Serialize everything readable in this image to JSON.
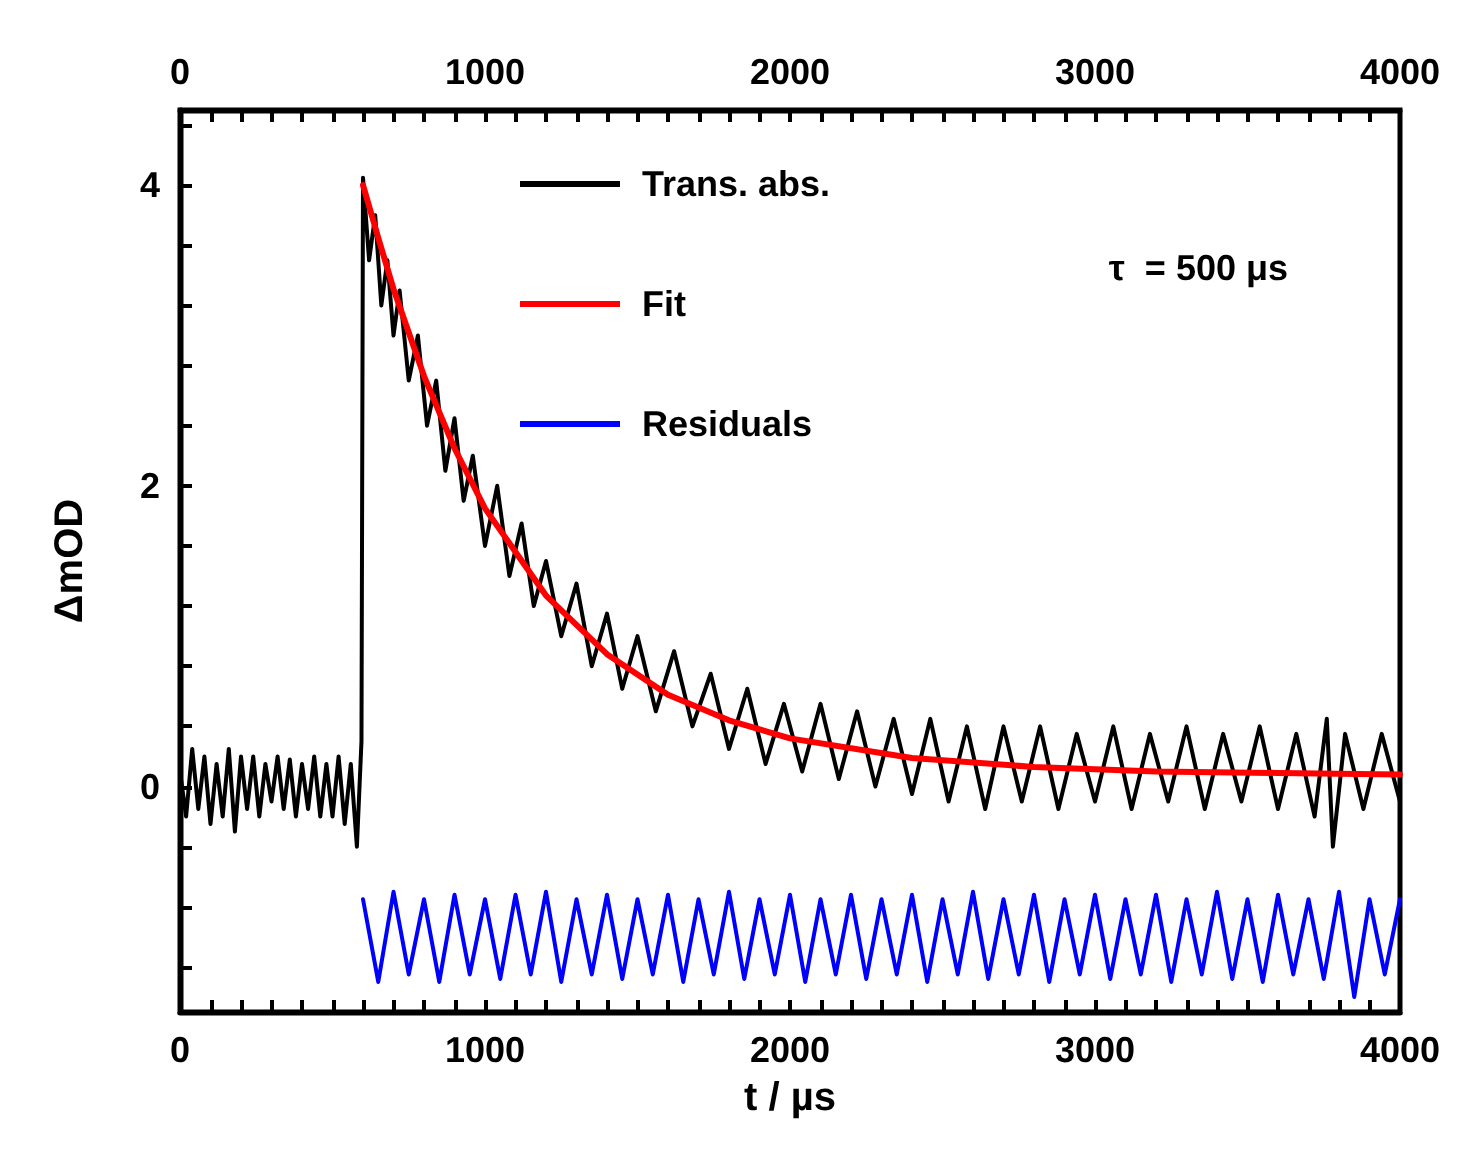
{
  "chart_data": {
    "type": "line",
    "xlabel": "t / µs",
    "ylabel": "ΔmOD",
    "annotations": [
      "τ  = 500 μs"
    ],
    "xlim": [
      0,
      4000
    ],
    "ylim": [
      -1.5,
      4.5
    ],
    "xticks": [
      0,
      {
        "value": 100,
        "label": null
      },
      {
        "value": 200,
        "label": null
      },
      {
        "value": 300,
        "label": null
      },
      {
        "value": 400,
        "label": null
      },
      {
        "value": 500,
        "label": null
      },
      {
        "value": 600,
        "label": null
      },
      {
        "value": 700,
        "label": null
      },
      {
        "value": 800,
        "label": null
      },
      {
        "value": 900,
        "label": null
      },
      1000,
      {
        "value": 1100,
        "label": null
      },
      {
        "value": 1200,
        "label": null
      },
      {
        "value": 1300,
        "label": null
      },
      {
        "value": 1400,
        "label": null
      },
      {
        "value": 1500,
        "label": null
      },
      {
        "value": 1600,
        "label": null
      },
      {
        "value": 1700,
        "label": null
      },
      {
        "value": 1800,
        "label": null
      },
      {
        "value": 1900,
        "label": null
      },
      2000,
      {
        "value": 2100,
        "label": null
      },
      {
        "value": 2200,
        "label": null
      },
      {
        "value": 2300,
        "label": null
      },
      {
        "value": 2400,
        "label": null
      },
      {
        "value": 2500,
        "label": null
      },
      {
        "value": 2600,
        "label": null
      },
      {
        "value": 2700,
        "label": null
      },
      {
        "value": 2800,
        "label": null
      },
      {
        "value": 2900,
        "label": null
      },
      3000,
      {
        "value": 3100,
        "label": null
      },
      {
        "value": 3200,
        "label": null
      },
      {
        "value": 3300,
        "label": null
      },
      {
        "value": 3400,
        "label": null
      },
      {
        "value": 3500,
        "label": null
      },
      {
        "value": 3600,
        "label": null
      },
      {
        "value": 3700,
        "label": null
      },
      {
        "value": 3800,
        "label": null
      },
      {
        "value": 3900,
        "label": null
      },
      4000
    ],
    "x2lim": [
      0,
      4000
    ],
    "x2ticks": [
      0,
      {
        "value": 100,
        "label": null
      },
      {
        "value": 200,
        "label": null
      },
      {
        "value": 300,
        "label": null
      },
      {
        "value": 400,
        "label": null
      },
      {
        "value": 500,
        "label": null
      },
      {
        "value": 600,
        "label": null
      },
      {
        "value": 700,
        "label": null
      },
      {
        "value": 800,
        "label": null
      },
      {
        "value": 900,
        "label": null
      },
      1000,
      {
        "value": 1100,
        "label": null
      },
      {
        "value": 1200,
        "label": null
      },
      {
        "value": 1300,
        "label": null
      },
      {
        "value": 1400,
        "label": null
      },
      {
        "value": 1500,
        "label": null
      },
      {
        "value": 1600,
        "label": null
      },
      {
        "value": 1700,
        "label": null
      },
      {
        "value": 1800,
        "label": null
      },
      {
        "value": 1900,
        "label": null
      },
      2000,
      {
        "value": 2100,
        "label": null
      },
      {
        "value": 2200,
        "label": null
      },
      {
        "value": 2300,
        "label": null
      },
      {
        "value": 2400,
        "label": null
      },
      {
        "value": 2500,
        "label": null
      },
      {
        "value": 2600,
        "label": null
      },
      {
        "value": 2700,
        "label": null
      },
      {
        "value": 2800,
        "label": null
      },
      {
        "value": 2900,
        "label": null
      },
      3000,
      {
        "value": 3100,
        "label": null
      },
      {
        "value": 3200,
        "label": null
      },
      {
        "value": 3300,
        "label": null
      },
      {
        "value": 3400,
        "label": null
      },
      {
        "value": 3500,
        "label": null
      },
      {
        "value": 3600,
        "label": null
      },
      {
        "value": 3700,
        "label": null
      },
      {
        "value": 3800,
        "label": null
      },
      {
        "value": 3900,
        "label": null
      },
      4000
    ],
    "yticks": [
      {
        "value": -1.2,
        "label": null
      },
      {
        "value": -0.8,
        "label": null
      },
      {
        "value": -0.4,
        "label": null
      },
      0,
      {
        "value": 0.4,
        "label": null
      },
      {
        "value": 0.8,
        "label": null
      },
      {
        "value": 1.2,
        "label": null
      },
      {
        "value": 1.6,
        "label": null
      },
      2,
      {
        "value": 2.4,
        "label": null
      },
      {
        "value": 2.8,
        "label": null
      },
      {
        "value": 3.2,
        "label": null
      },
      {
        "value": 3.6,
        "label": null
      },
      4,
      {
        "value": 4.4,
        "label": null
      }
    ],
    "grid": false,
    "legend": "top",
    "marker": "none",
    "line_style": "solid",
    "series": [
      {
        "name": "Trans. abs.",
        "color": "#000000",
        "x": [
          0,
          20,
          40,
          60,
          80,
          100,
          120,
          140,
          160,
          180,
          200,
          220,
          240,
          260,
          280,
          300,
          320,
          340,
          360,
          380,
          400,
          420,
          440,
          460,
          480,
          500,
          520,
          540,
          560,
          580,
          595,
          600,
          620,
          640,
          660,
          680,
          700,
          720,
          750,
          780,
          810,
          840,
          870,
          900,
          930,
          960,
          1000,
          1040,
          1080,
          1120,
          1160,
          1200,
          1250,
          1300,
          1350,
          1400,
          1450,
          1500,
          1560,
          1620,
          1680,
          1740,
          1800,
          1860,
          1920,
          1980,
          2040,
          2100,
          2160,
          2220,
          2280,
          2340,
          2400,
          2460,
          2520,
          2580,
          2640,
          2700,
          2760,
          2820,
          2880,
          2940,
          3000,
          3060,
          3120,
          3180,
          3240,
          3300,
          3360,
          3420,
          3480,
          3540,
          3600,
          3660,
          3720,
          3760,
          3780,
          3820,
          3880,
          3940,
          4000
        ],
        "values": [
          0.1,
          -0.2,
          0.25,
          -0.15,
          0.2,
          -0.25,
          0.15,
          -0.2,
          0.25,
          -0.3,
          0.2,
          -0.15,
          0.2,
          -0.2,
          0.15,
          -0.1,
          0.2,
          -0.15,
          0.18,
          -0.2,
          0.15,
          -0.15,
          0.2,
          -0.2,
          0.15,
          -0.2,
          0.2,
          -0.25,
          0.15,
          -0.4,
          0.3,
          4.05,
          3.5,
          3.8,
          3.2,
          3.5,
          3.0,
          3.3,
          2.7,
          3.0,
          2.4,
          2.7,
          2.1,
          2.45,
          1.9,
          2.2,
          1.6,
          2.0,
          1.4,
          1.75,
          1.2,
          1.5,
          1.0,
          1.35,
          0.8,
          1.15,
          0.65,
          1.0,
          0.5,
          0.9,
          0.4,
          0.75,
          0.25,
          0.65,
          0.15,
          0.55,
          0.1,
          0.55,
          0.05,
          0.5,
          0.0,
          0.45,
          -0.05,
          0.45,
          -0.1,
          0.4,
          -0.15,
          0.4,
          -0.1,
          0.4,
          -0.15,
          0.35,
          -0.1,
          0.4,
          -0.15,
          0.35,
          -0.1,
          0.4,
          -0.15,
          0.35,
          -0.1,
          0.4,
          -0.15,
          0.35,
          -0.2,
          0.45,
          -0.4,
          0.35,
          -0.15,
          0.35,
          -0.1
        ]
      },
      {
        "name": "Fit",
        "color": "#ff0000",
        "x": [
          600,
          650,
          700,
          800,
          900,
          1000,
          1200,
          1400,
          1600,
          1800,
          2000,
          2400,
          2800,
          3200,
          3600,
          4000
        ],
        "values": [
          4.0,
          3.65,
          3.31,
          2.73,
          2.25,
          1.85,
          1.27,
          0.88,
          0.61,
          0.44,
          0.32,
          0.19,
          0.13,
          0.1,
          0.09,
          0.08
        ]
      },
      {
        "name": "Residuals",
        "color": "#0000ff",
        "x": [
          600,
          650,
          700,
          750,
          800,
          850,
          900,
          950,
          1000,
          1050,
          1100,
          1150,
          1200,
          1250,
          1300,
          1350,
          1400,
          1450,
          1500,
          1550,
          1600,
          1650,
          1700,
          1750,
          1800,
          1850,
          1900,
          1950,
          2000,
          2050,
          2100,
          2150,
          2200,
          2250,
          2300,
          2350,
          2400,
          2450,
          2500,
          2550,
          2600,
          2650,
          2700,
          2750,
          2800,
          2850,
          2900,
          2950,
          3000,
          3050,
          3100,
          3150,
          3200,
          3250,
          3300,
          3350,
          3400,
          3450,
          3500,
          3550,
          3600,
          3650,
          3700,
          3750,
          3800,
          3850,
          3900,
          3950,
          4000
        ],
        "values": [
          -0.75,
          -1.3,
          -0.7,
          -1.25,
          -0.75,
          -1.3,
          -0.72,
          -1.25,
          -0.75,
          -1.28,
          -0.72,
          -1.25,
          -0.7,
          -1.3,
          -0.75,
          -1.25,
          -0.72,
          -1.28,
          -0.75,
          -1.25,
          -0.72,
          -1.3,
          -0.75,
          -1.25,
          -0.7,
          -1.28,
          -0.75,
          -1.25,
          -0.72,
          -1.3,
          -0.75,
          -1.25,
          -0.72,
          -1.28,
          -0.75,
          -1.25,
          -0.72,
          -1.3,
          -0.75,
          -1.25,
          -0.7,
          -1.28,
          -0.75,
          -1.25,
          -0.72,
          -1.3,
          -0.75,
          -1.25,
          -0.72,
          -1.28,
          -0.75,
          -1.25,
          -0.72,
          -1.3,
          -0.75,
          -1.25,
          -0.7,
          -1.28,
          -0.75,
          -1.3,
          -0.72,
          -1.25,
          -0.75,
          -1.28,
          -0.7,
          -1.4,
          -0.75,
          -1.25,
          -0.75
        ]
      }
    ]
  }
}
